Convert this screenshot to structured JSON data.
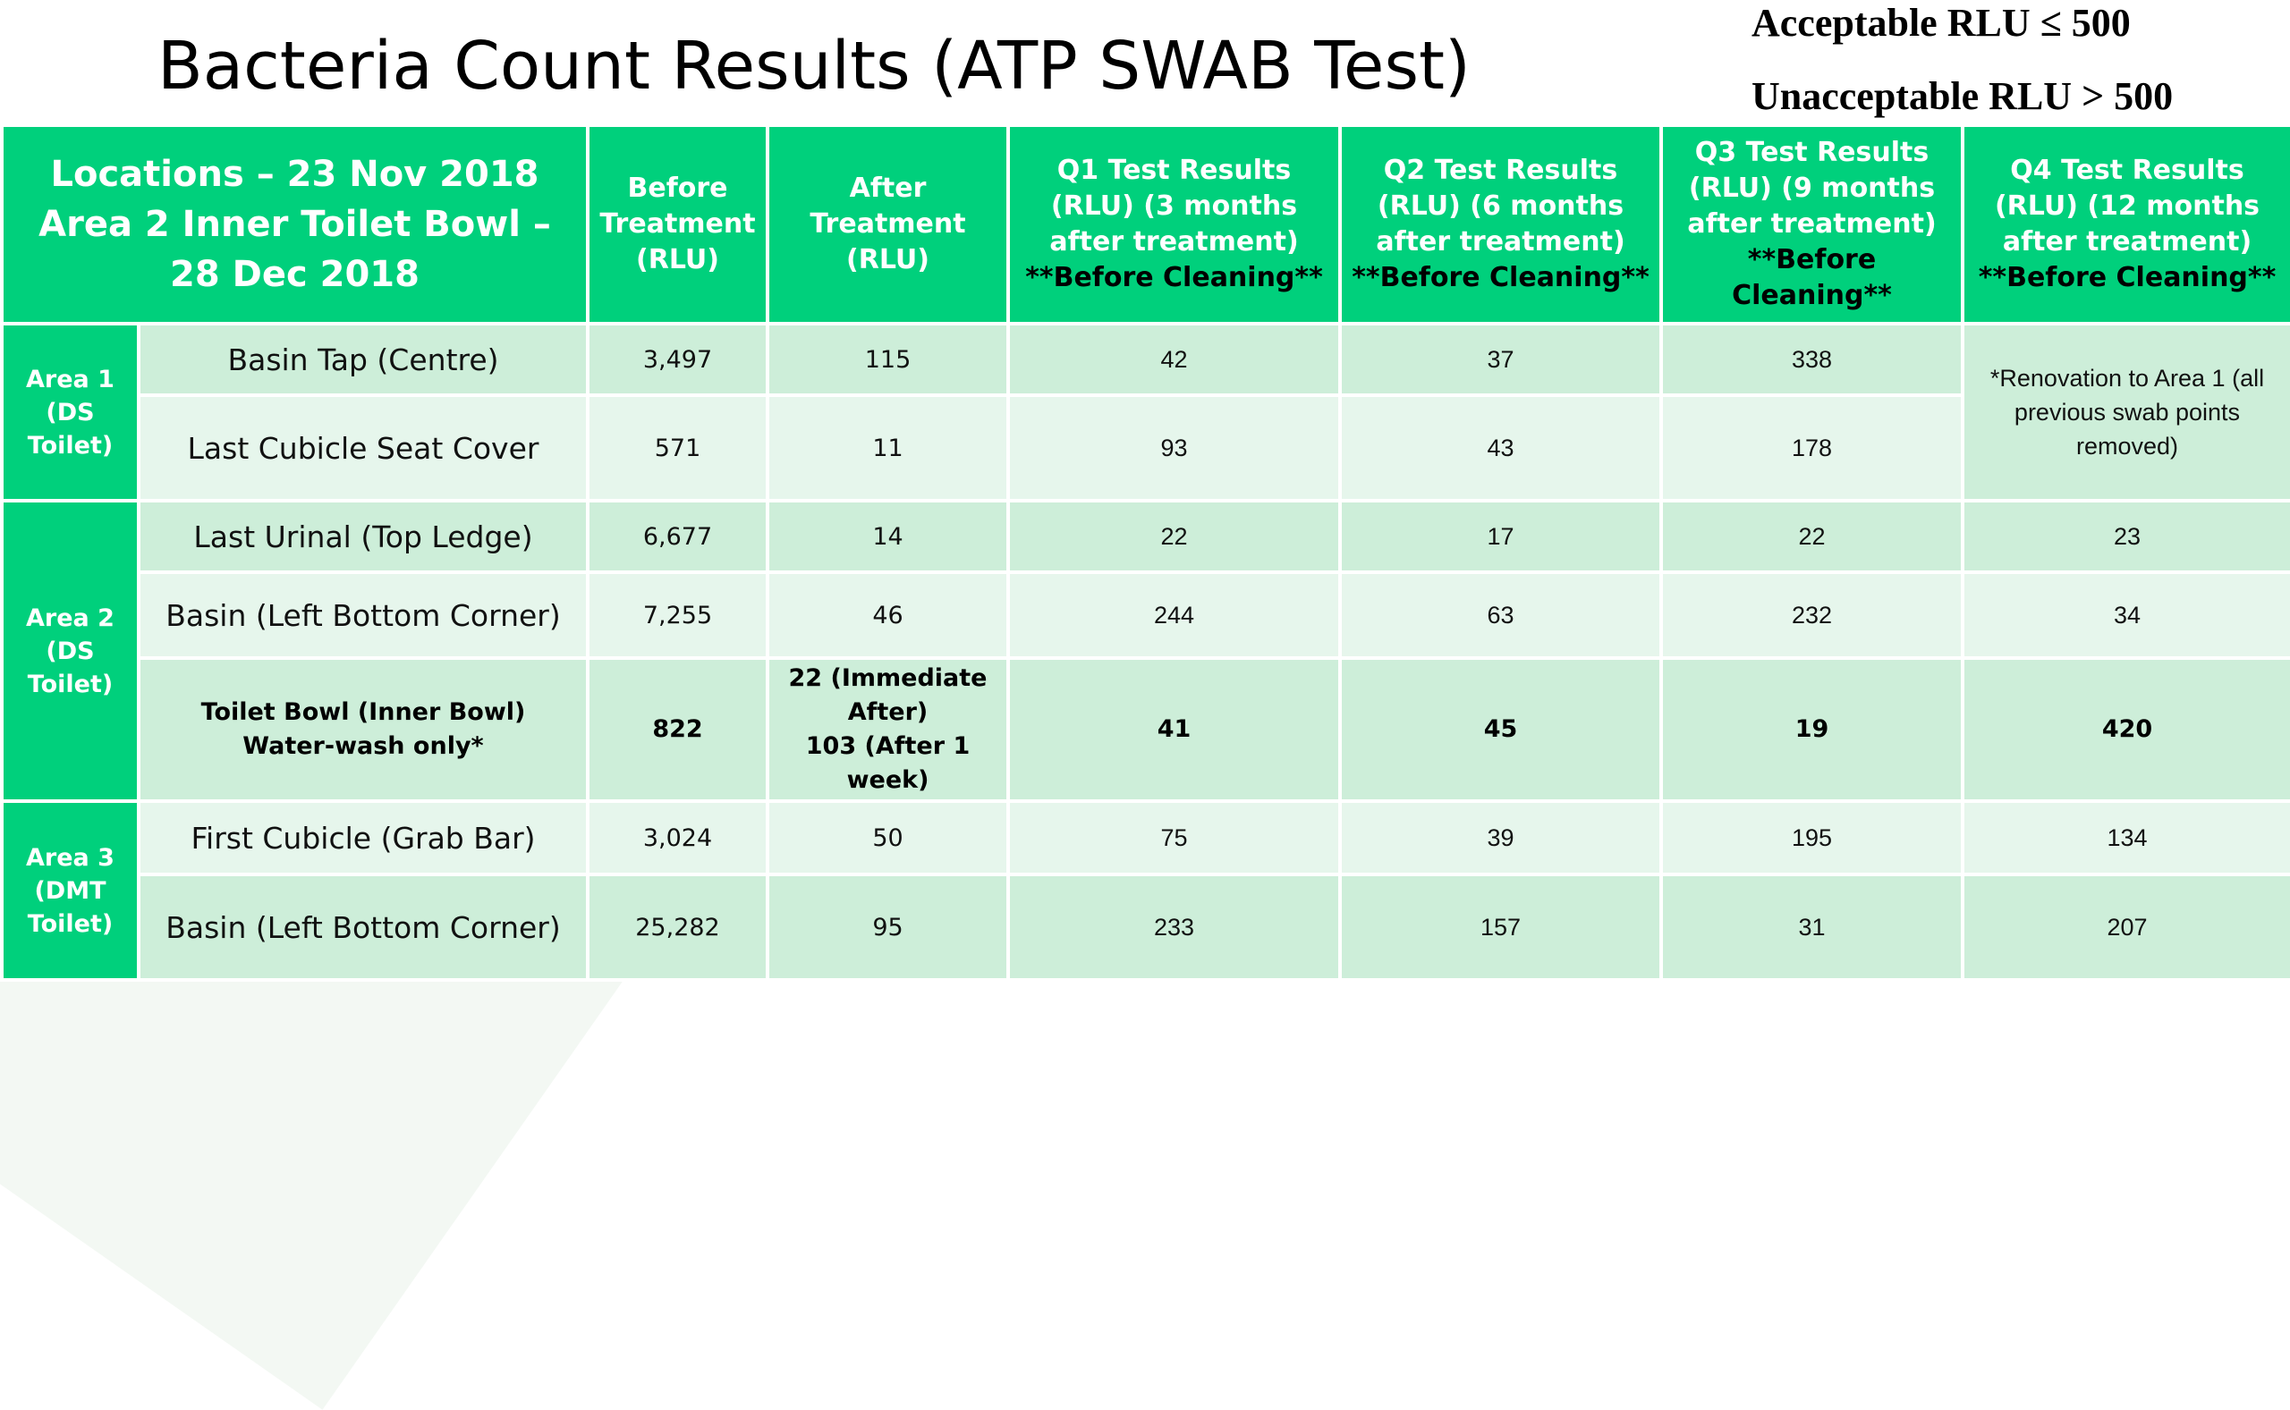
{
  "title": "Bacteria Count Results (ATP SWAB Test)",
  "legend": {
    "acceptable": "Acceptable RLU ≤ 500",
    "unacceptable": "Unacceptable RLU > 500"
  },
  "header": {
    "locations": [
      "Locations – 23 Nov 2018",
      "Area 2 Inner Toilet Bowl – 28 Dec 2018"
    ],
    "before": "Before Treatment (RLU)",
    "after": "After Treatment (RLU)",
    "q1": "Q1 Test Results (RLU) (3 months after treatment)",
    "q2": "Q2 Test Results (RLU) (6 months after treatment)",
    "q3": "Q3 Test Results (RLU) (9 months after treatment)",
    "q4": "Q4 Test Results (RLU) (12 months after treatment)",
    "before_cleaning": "**Before Cleaning**"
  },
  "areas": {
    "area1": "Area 1 (DS Toilet)",
    "area2": "Area 2 (DS Toilet)",
    "area3": "Area 3 (DMT Toilet)"
  },
  "renovation_note": "*Renovation to Area 1 (all previous swab points removed)",
  "rows": [
    {
      "location": "Basin Tap (Centre)",
      "before": "3,497",
      "after": "115",
      "q1": "42",
      "q2": "37",
      "q3": "338"
    },
    {
      "location": "Last Cubicle Seat Cover",
      "before": "571",
      "after": "11",
      "q1": "93",
      "q2": "43",
      "q3": "178"
    },
    {
      "location": "Last Urinal (Top Ledge)",
      "before": "6,677",
      "after": "14",
      "q1": "22",
      "q2": "17",
      "q3": "22",
      "q4": "23"
    },
    {
      "location": "Basin (Left Bottom Corner)",
      "before": "7,255",
      "after": "46",
      "q1": "244",
      "q2": "63",
      "q3": "232",
      "q4": "34"
    },
    {
      "location": [
        "Toilet Bowl (Inner Bowl)",
        "Water-wash only*"
      ],
      "before": "822",
      "after": [
        "22 (Immediate",
        "After)",
        "103 (After 1 week)"
      ],
      "q1": "41",
      "q2": "45",
      "q3": "19",
      "q4": "420"
    },
    {
      "location": "First Cubicle (Grab Bar)",
      "before": "3,024",
      "after": "50",
      "q1": "75",
      "q2": "39",
      "q3": "195",
      "q4": "134"
    },
    {
      "location": "Basin (Left Bottom Corner)",
      "before": "25,282",
      "after": "95",
      "q1": "233",
      "q2": "157",
      "q3": "31",
      "q4": "207"
    }
  ]
}
